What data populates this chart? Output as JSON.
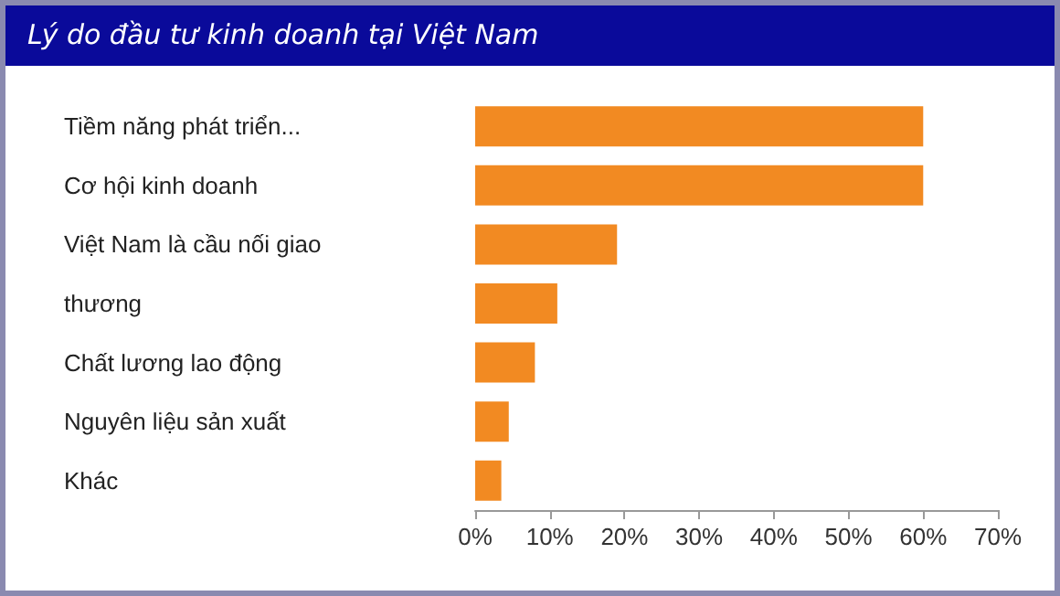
{
  "chart_data": {
    "type": "bar",
    "orientation": "horizontal",
    "title": "Lý do đầu tư kinh doanh tại Việt Nam",
    "categories": [
      "Tiềm năng phát triển...",
      "Cơ hội kinh doanh",
      "Việt Nam là cầu nối giao",
      "thương",
      "Chất lương lao động",
      "Nguyên liệu sản xuất",
      "Khác"
    ],
    "values": [
      60,
      60,
      19,
      11,
      8,
      4.5,
      3.5
    ],
    "color": "#f28a22",
    "xlim": [
      0,
      70
    ],
    "xticks": [
      {
        "value": 0,
        "label": "0%"
      },
      {
        "value": 10,
        "label": "10%"
      },
      {
        "value": 20,
        "label": "20%"
      },
      {
        "value": 30,
        "label": "30%"
      },
      {
        "value": 40,
        "label": "40%"
      },
      {
        "value": 50,
        "label": "50%"
      },
      {
        "value": 60,
        "label": "60%"
      },
      {
        "value": 70,
        "label": "70%"
      }
    ],
    "data_labels": false
  }
}
